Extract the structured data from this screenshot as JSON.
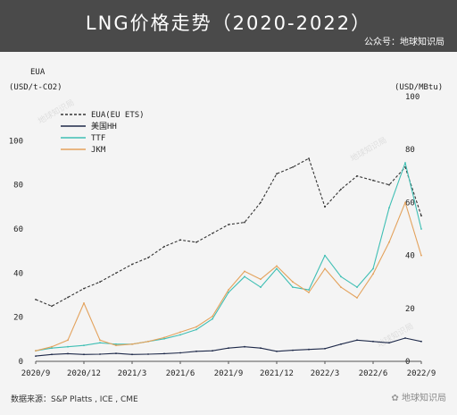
{
  "header": {
    "title": "LNG价格走势（2020-2022）",
    "source_account": "公众号：地球知识局"
  },
  "footer": {
    "data_source": "数据来源：S&P Platts , ICE , CME",
    "wechat_mark": "地球知识局"
  },
  "watermarks": [
    "地球知识局",
    "地球知识局",
    "地球知识局"
  ],
  "colors": {
    "eua": "#333333",
    "hh": "#1f2a4a",
    "ttf": "#3fbfb4",
    "jkm": "#e3a25c",
    "banner": "#4a4a4a"
  },
  "chart_data": {
    "type": "line",
    "title": "LNG价格走势（2020-2022）",
    "left_axis_title": "EUA",
    "left_axis_unit": "(USD/t-CO2)",
    "right_axis_unit": "(USD/MBtu)",
    "ylim_left": [
      0,
      120
    ],
    "ylim_right": [
      0,
      100
    ],
    "yticks_left": [
      "0",
      "20",
      "40",
      "60",
      "80",
      "100"
    ],
    "yticks_left_values": [
      0,
      20,
      40,
      60,
      80,
      100
    ],
    "yticks_right": [
      "0",
      "20",
      "40",
      "60",
      "80",
      "100"
    ],
    "yticks_right_values": [
      0,
      20,
      40,
      60,
      80,
      100
    ],
    "xlim": [
      "2020-09",
      "2022-09"
    ],
    "xticks": [
      "2020/9",
      "2020/12",
      "2021/3",
      "2021/6",
      "2021/9",
      "2021/12",
      "2022/3",
      "2022/6",
      "2022/9"
    ],
    "xticks_values": [
      "2020-09",
      "2020-12",
      "2021-03",
      "2021-06",
      "2021-09",
      "2021-12",
      "2022-03",
      "2022-06",
      "2022-09"
    ],
    "grid": false,
    "legend_position": "top-left",
    "series": [
      {
        "name": "EUA(EU ETS)",
        "axis": "left",
        "style": "dashed",
        "x": [
          "2020-09",
          "2020-10",
          "2020-11",
          "2020-12",
          "2021-01",
          "2021-02",
          "2021-03",
          "2021-04",
          "2021-05",
          "2021-06",
          "2021-07",
          "2021-08",
          "2021-09",
          "2021-10",
          "2021-11",
          "2021-12",
          "2022-01",
          "2022-02",
          "2022-03",
          "2022-04",
          "2022-05",
          "2022-06",
          "2022-07",
          "2022-08",
          "2022-09"
        ],
        "values": [
          28,
          25,
          29,
          33,
          36,
          40,
          44,
          47,
          52,
          55,
          54,
          58,
          62,
          63,
          72,
          85,
          88,
          92,
          70,
          78,
          84,
          82,
          80,
          88,
          66
        ]
      },
      {
        "name": "美国HH",
        "axis": "right",
        "style": "solid",
        "x": [
          "2020-09",
          "2020-10",
          "2020-11",
          "2020-12",
          "2021-01",
          "2021-02",
          "2021-03",
          "2021-04",
          "2021-05",
          "2021-06",
          "2021-07",
          "2021-08",
          "2021-09",
          "2021-10",
          "2021-11",
          "2021-12",
          "2022-01",
          "2022-02",
          "2022-03",
          "2022-04",
          "2022-05",
          "2022-06",
          "2022-07",
          "2022-08",
          "2022-09"
        ],
        "values": [
          2.0,
          2.6,
          2.9,
          2.6,
          2.7,
          3.0,
          2.6,
          2.7,
          2.9,
          3.2,
          3.8,
          4.0,
          5.0,
          5.5,
          5.0,
          3.8,
          4.2,
          4.5,
          4.8,
          6.5,
          8.0,
          7.5,
          7.0,
          8.8,
          7.5
        ]
      },
      {
        "name": "TTF",
        "axis": "right",
        "style": "solid",
        "x": [
          "2020-09",
          "2020-10",
          "2020-11",
          "2020-12",
          "2021-01",
          "2021-02",
          "2021-03",
          "2021-04",
          "2021-05",
          "2021-06",
          "2021-07",
          "2021-08",
          "2021-09",
          "2021-10",
          "2021-11",
          "2021-12",
          "2022-01",
          "2022-02",
          "2022-03",
          "2022-04",
          "2022-05",
          "2022-06",
          "2022-07",
          "2022-08",
          "2022-09"
        ],
        "values": [
          4.0,
          5.0,
          5.5,
          6.0,
          7.0,
          6.5,
          6.5,
          7.5,
          8.5,
          10.0,
          12.0,
          16.0,
          26.0,
          32.0,
          28.0,
          35.0,
          28.0,
          27.0,
          40.0,
          32.0,
          28.0,
          35.0,
          58.0,
          75.0,
          50.0
        ]
      },
      {
        "name": "JKM",
        "axis": "right",
        "style": "solid",
        "x": [
          "2020-09",
          "2020-10",
          "2020-11",
          "2020-12",
          "2021-01",
          "2021-02",
          "2021-03",
          "2021-04",
          "2021-05",
          "2021-06",
          "2021-07",
          "2021-08",
          "2021-09",
          "2021-10",
          "2021-11",
          "2021-12",
          "2022-01",
          "2022-02",
          "2022-03",
          "2022-04",
          "2022-05",
          "2022-06",
          "2022-07",
          "2022-08",
          "2022-09"
        ],
        "values": [
          4.0,
          5.5,
          8.0,
          22.0,
          8.0,
          6.0,
          6.5,
          7.5,
          9.0,
          11.0,
          13.0,
          17.0,
          27.0,
          34.0,
          31.0,
          36.0,
          30.0,
          26.0,
          35.0,
          28.0,
          24.0,
          33.0,
          45.0,
          60.0,
          40.0
        ]
      }
    ]
  }
}
